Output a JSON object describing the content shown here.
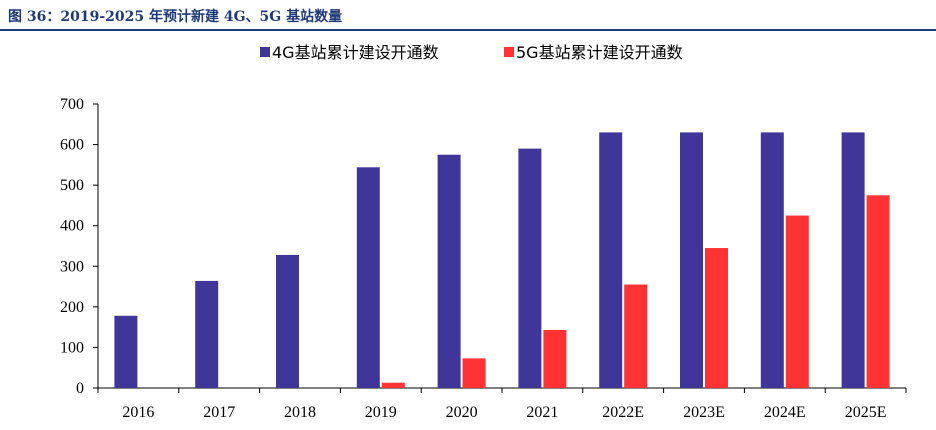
{
  "figure_title": "图 36：2019-2025 年预计新建 4G、5G 基站数量",
  "chart_data": {
    "type": "bar",
    "title": "",
    "xlabel": "",
    "ylabel": "",
    "categories": [
      "2016",
      "2017",
      "2018",
      "2019",
      "2020",
      "2021",
      "2022E",
      "2023E",
      "2024E",
      "2025E"
    ],
    "ylim": [
      0,
      700
    ],
    "yticks": [
      0,
      100,
      200,
      300,
      400,
      500,
      600,
      700
    ],
    "grid": false,
    "legend_position": "top-center",
    "series": [
      {
        "name": "4G基站累计建设开通数",
        "color": "#40369a",
        "values": [
          178,
          264,
          328,
          544,
          575,
          590,
          630,
          630,
          630,
          630
        ]
      },
      {
        "name": "5G基站累计建设开通数",
        "color": "#ff3333",
        "values": [
          0,
          0,
          0,
          13,
          73,
          143,
          255,
          345,
          425,
          475
        ]
      }
    ]
  }
}
